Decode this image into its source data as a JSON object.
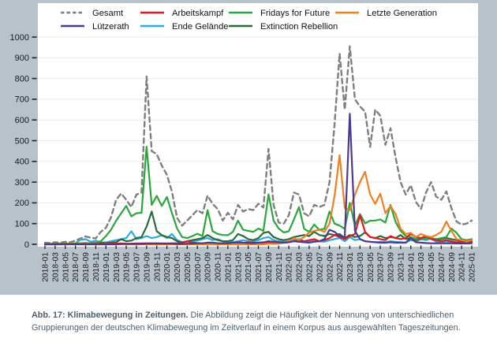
{
  "caption": {
    "bold": "Abb. 17: Klimabewegung in Zeitungen.",
    "rest": " Die Abbildung zeigt die Häufigkeit der Nennung von unterschiedlichen Gruppierungen der deutschen Klimabewegung im Zeitverlauf in einem Korpus aus ausgewählten Tageszeitungen."
  },
  "colors": {
    "background": "#b7c2cb",
    "plot_background": "#ffffff",
    "grid": "#e9eaee",
    "axis_text": "#1a1a1a",
    "caption_text": "#4e5e6a"
  },
  "chart_data": {
    "type": "line",
    "title": "",
    "xlabel": "",
    "ylabel": "",
    "ylim": [
      0,
      1000
    ],
    "yticks": [
      0,
      100,
      200,
      300,
      400,
      500,
      600,
      700,
      800,
      900,
      1000
    ],
    "grid": true,
    "legend_position": "top",
    "x_tick_step": 2,
    "x": [
      "2018-01",
      "2018-02",
      "2018-03",
      "2018-04",
      "2018-05",
      "2018-06",
      "2018-07",
      "2018-08",
      "2018-09",
      "2018-10",
      "2018-11",
      "2018-12",
      "2019-01",
      "2019-02",
      "2019-03",
      "2019-04",
      "2019-05",
      "2019-06",
      "2019-07",
      "2019-08",
      "2019-09",
      "2019-10",
      "2019-11",
      "2019-12",
      "2020-01",
      "2020-02",
      "2020-03",
      "2020-04",
      "2020-05",
      "2020-06",
      "2020-07",
      "2020-08",
      "2020-09",
      "2020-10",
      "2020-11",
      "2020-12",
      "2021-01",
      "2021-02",
      "2021-03",
      "2021-04",
      "2021-05",
      "2021-06",
      "2021-07",
      "2021-08",
      "2021-09",
      "2021-10",
      "2021-11",
      "2021-12",
      "2022-01",
      "2022-02",
      "2022-03",
      "2022-04",
      "2022-05",
      "2022-06",
      "2022-07",
      "2022-08",
      "2022-09",
      "2022-10",
      "2022-11",
      "2022-12",
      "2023-01",
      "2023-02",
      "2023-03",
      "2023-04",
      "2023-05",
      "2023-06",
      "2023-07",
      "2023-08",
      "2023-09",
      "2023-10",
      "2023-11",
      "2023-12",
      "2024-01",
      "2024-02",
      "2024-03",
      "2024-04",
      "2024-05",
      "2024-06",
      "2024-07",
      "2024-08",
      "2024-09",
      "2024-10",
      "2024-11",
      "2024-12",
      "2025-01"
    ],
    "series": [
      {
        "name": "Gesamt",
        "color": "#7f7f7f",
        "dashed": true,
        "legend": {
          "col": 0,
          "row": 0
        },
        "values": [
          8,
          6,
          10,
          8,
          12,
          10,
          18,
          28,
          38,
          32,
          28,
          60,
          80,
          130,
          215,
          245,
          215,
          180,
          240,
          250,
          810,
          450,
          435,
          380,
          335,
          253,
          127,
          90,
          115,
          140,
          165,
          150,
          235,
          195,
          170,
          115,
          152,
          120,
          190,
          158,
          170,
          165,
          196,
          177,
          460,
          190,
          105,
          100,
          140,
          250,
          240,
          150,
          135,
          190,
          180,
          190,
          300,
          580,
          920,
          650,
          955,
          700,
          665,
          640,
          470,
          650,
          620,
          480,
          560,
          420,
          300,
          240,
          285,
          205,
          170,
          250,
          300,
          230,
          215,
          255,
          175,
          110,
          95,
          100,
          115
        ]
      },
      {
        "name": "Ende Gelände",
        "color": "#2aabe2",
        "dashed": false,
        "legend": {
          "col": 1,
          "row": 1
        },
        "values": [
          3,
          2,
          3,
          2,
          3,
          4,
          5,
          22,
          25,
          12,
          18,
          8,
          10,
          15,
          20,
          25,
          30,
          63,
          25,
          30,
          40,
          30,
          35,
          44,
          30,
          50,
          20,
          10,
          12,
          15,
          18,
          25,
          30,
          20,
          25,
          15,
          12,
          10,
          15,
          20,
          15,
          12,
          20,
          30,
          35,
          20,
          15,
          12,
          15,
          20,
          25,
          15,
          12,
          18,
          15,
          12,
          20,
          25,
          30,
          15,
          35,
          20,
          25,
          15,
          12,
          10,
          12,
          10,
          15,
          12,
          10,
          8,
          20,
          15,
          25,
          20,
          28,
          12,
          10,
          15,
          10,
          8,
          5,
          5,
          8
        ]
      },
      {
        "name": "Extinction Rebellion",
        "color": "#2d6a39",
        "dashed": false,
        "legend": {
          "col": 2,
          "row": 1
        },
        "values": [
          0,
          0,
          0,
          0,
          1,
          1,
          1,
          2,
          2,
          2,
          3,
          8,
          5,
          8,
          10,
          25,
          15,
          18,
          30,
          35,
          85,
          158,
          63,
          44,
          35,
          30,
          15,
          10,
          15,
          20,
          25,
          30,
          45,
          30,
          20,
          15,
          15,
          20,
          50,
          40,
          25,
          20,
          30,
          55,
          60,
          35,
          25,
          20,
          25,
          35,
          40,
          45,
          40,
          60,
          45,
          40,
          50,
          45,
          50,
          30,
          45,
          35,
          40,
          57,
          35,
          30,
          40,
          30,
          35,
          30,
          45,
          25,
          30,
          20,
          25,
          35,
          30,
          20,
          25,
          30,
          25,
          20,
          15,
          20,
          15
        ]
      },
      {
        "name": "Fridays for Future",
        "color": "#2aa63c",
        "dashed": false,
        "legend": {
          "col": 2,
          "row": 0
        },
        "values": [
          2,
          2,
          2,
          3,
          3,
          3,
          4,
          5,
          6,
          5,
          8,
          15,
          40,
          70,
          114,
          150,
          185,
          135,
          150,
          152,
          471,
          190,
          234,
          185,
          228,
          150,
          76,
          35,
          30,
          40,
          51,
          40,
          165,
          63,
          50,
          45,
          44,
          60,
          114,
          70,
          65,
          60,
          76,
          65,
          241,
          114,
          76,
          57,
          63,
          120,
          180,
          75,
          60,
          95,
          70,
          75,
          158,
          100,
          90,
          75,
          200,
          90,
          146,
          101,
          114,
          115,
          120,
          105,
          190,
          108,
          65,
          40,
          35,
          25,
          30,
          25,
          30,
          25,
          30,
          35,
          76,
          55,
          25,
          20,
          25
        ]
      },
      {
        "name": "Arbeitskampf",
        "color": "#e11a22",
        "dashed": false,
        "legend": {
          "col": 1,
          "row": 0
        },
        "values": [
          1,
          1,
          1,
          1,
          2,
          1,
          1,
          2,
          2,
          1,
          2,
          2,
          2,
          3,
          3,
          4,
          3,
          3,
          4,
          4,
          5,
          5,
          5,
          4,
          4,
          5,
          5,
          8,
          15,
          8,
          6,
          5,
          6,
          5,
          5,
          4,
          5,
          6,
          8,
          6,
          10,
          8,
          6,
          8,
          10,
          8,
          6,
          8,
          10,
          15,
          20,
          15,
          20,
          25,
          15,
          20,
          30,
          45,
          35,
          25,
          40,
          50,
          140,
          60,
          35,
          30,
          25,
          20,
          40,
          30,
          25,
          30,
          50,
          35,
          30,
          40,
          25,
          20,
          15,
          20,
          15,
          10,
          10,
          15,
          10
        ]
      },
      {
        "name": "Letzte Generation",
        "color": "#ef8022",
        "dashed": false,
        "legend": {
          "col": 3,
          "row": 0
        },
        "values": [
          0,
          0,
          0,
          0,
          0,
          0,
          0,
          0,
          0,
          0,
          0,
          0,
          0,
          0,
          0,
          0,
          0,
          0,
          0,
          0,
          0,
          0,
          0,
          0,
          0,
          0,
          0,
          0,
          0,
          0,
          0,
          0,
          0,
          0,
          0,
          0,
          0,
          0,
          0,
          0,
          0,
          0,
          0,
          0,
          3,
          2,
          3,
          8,
          15,
          30,
          20,
          35,
          57,
          65,
          70,
          60,
          100,
          235,
          430,
          175,
          165,
          240,
          300,
          350,
          240,
          195,
          245,
          150,
          185,
          146,
          75,
          50,
          55,
          35,
          50,
          40,
          35,
          45,
          60,
          110,
          65,
          25,
          20,
          15,
          20
        ]
      },
      {
        "name": "Lützerath",
        "color": "#4d3a8e",
        "dashed": false,
        "legend": {
          "col": 0,
          "row": 1
        },
        "values": [
          0,
          0,
          0,
          0,
          0,
          0,
          0,
          0,
          0,
          0,
          0,
          0,
          0,
          0,
          0,
          2,
          2,
          2,
          2,
          2,
          3,
          3,
          3,
          3,
          3,
          3,
          2,
          2,
          3,
          3,
          5,
          5,
          8,
          8,
          5,
          5,
          5,
          8,
          10,
          8,
          6,
          5,
          8,
          10,
          15,
          12,
          10,
          8,
          10,
          15,
          12,
          10,
          8,
          12,
          15,
          25,
          70,
          60,
          40,
          35,
          630,
          65,
          25,
          15,
          12,
          10,
          8,
          8,
          10,
          8,
          8,
          8,
          30,
          10,
          8,
          6,
          5,
          5,
          5,
          5,
          5,
          4,
          4,
          4,
          5
        ]
      }
    ]
  }
}
